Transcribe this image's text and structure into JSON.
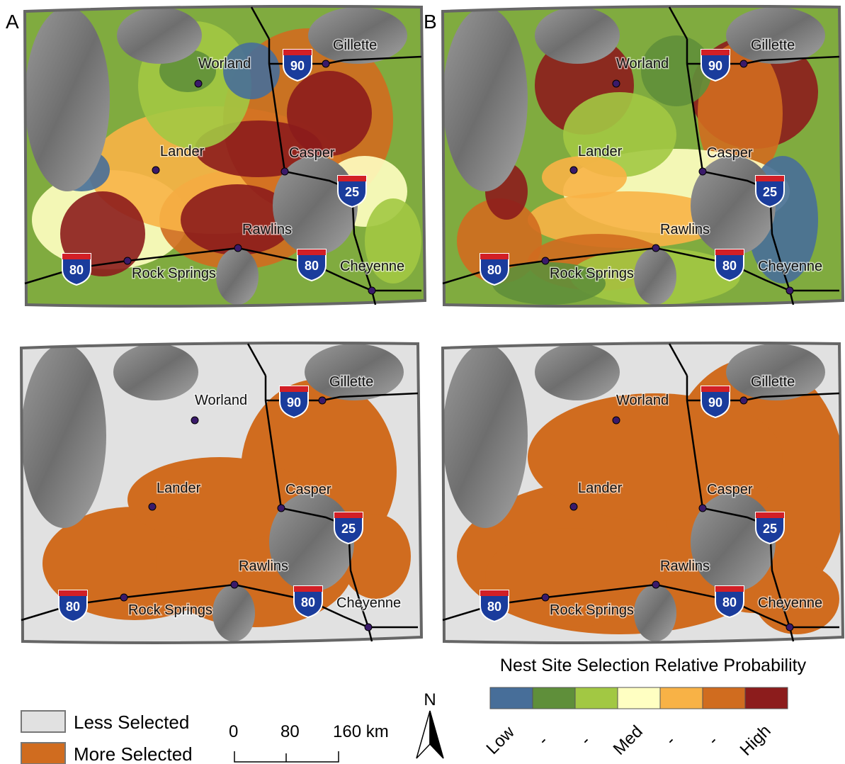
{
  "panels": [
    {
      "label": "A"
    },
    {
      "label": "B"
    }
  ],
  "cities": [
    "Worland",
    "Gillette",
    "Lander",
    "Casper",
    "Rawlins",
    "Rock Springs",
    "Cheyenne"
  ],
  "interstates": [
    "90",
    "25",
    "80",
    "80"
  ],
  "legend_continuous": {
    "title": "Nest Site Selection Relative  Probability",
    "labels": [
      "Low",
      "-",
      "-",
      "Med",
      "-",
      "-",
      "High"
    ],
    "colors": [
      "#476e99",
      "#5f8f3a",
      "#a2c843",
      "#ffffc2",
      "#f8b246",
      "#d06c1f",
      "#8c1c1c"
    ]
  },
  "legend_binary": {
    "items": [
      {
        "label": "Less Selected",
        "color": "#e1e1e1"
      },
      {
        "label": "More Selected",
        "color": "#d06c1f"
      }
    ]
  },
  "scale_bar": {
    "labels": [
      "0",
      "80",
      "160 km"
    ]
  },
  "north": "N"
}
